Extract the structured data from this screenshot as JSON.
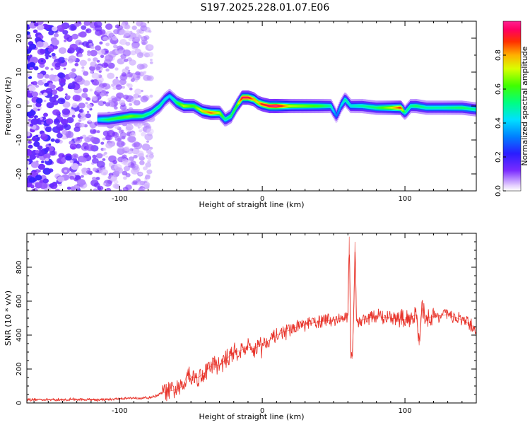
{
  "title": "S197.2025.228.01.07.E06",
  "chart_data": [
    {
      "type": "heatmap",
      "name": "spectrogram",
      "xlabel": "Height of straight line (km)",
      "ylabel": "Frequency (Hz)",
      "xlim": [
        -165,
        150
      ],
      "ylim": [
        -25,
        25
      ],
      "xticks": [
        -100,
        0,
        100
      ],
      "xtick_labels": [
        "-100",
        "0",
        "100"
      ],
      "yticks": [
        -20,
        -10,
        0,
        10,
        20
      ],
      "ytick_labels": [
        "-20",
        "-10",
        "0",
        "10",
        "20"
      ],
      "noise_region_x": [
        -165,
        -82
      ],
      "ridge": {
        "x": [
          -115,
          -108,
          -100,
          -92,
          -84,
          -78,
          -72,
          -68,
          -65,
          -60,
          -55,
          -48,
          -42,
          -36,
          -30,
          -26,
          -22,
          -18,
          -14,
          -10,
          -6,
          -3,
          0,
          5,
          10,
          20,
          30,
          40,
          48,
          52,
          55,
          58,
          62,
          70,
          80,
          90,
          97,
          100,
          104,
          108,
          115,
          125,
          140,
          150
        ],
        "y": [
          -4,
          -4,
          -3.5,
          -3,
          -3,
          -2,
          0,
          2,
          3,
          1,
          0,
          0,
          -1.5,
          -2,
          -2,
          -4,
          -3,
          0,
          2.5,
          2.5,
          2,
          1,
          0.5,
          0,
          0,
          0,
          0,
          0,
          0,
          -3,
          0,
          2,
          0,
          0,
          -0.5,
          -0.5,
          -0.5,
          -2,
          0,
          0,
          -0.5,
          -0.5,
          -0.5,
          -1
        ],
        "amp": [
          0.45,
          0.55,
          0.6,
          0.65,
          0.55,
          0.5,
          0.5,
          0.45,
          0.4,
          0.55,
          0.7,
          0.6,
          0.75,
          0.85,
          0.7,
          0.5,
          0.55,
          0.6,
          0.95,
          0.95,
          0.8,
          0.75,
          0.9,
          0.95,
          1.0,
          0.7,
          0.65,
          0.6,
          0.5,
          0.3,
          0.4,
          0.5,
          0.45,
          0.5,
          0.55,
          0.7,
          0.9,
          0.5,
          0.5,
          0.55,
          0.5,
          0.5,
          0.55,
          0.5
        ]
      },
      "colorbar": {
        "label": "Normalized spectral amplitude",
        "range": [
          0,
          1
        ],
        "ticks": [
          0.0,
          0.2,
          0.4,
          0.6,
          0.8
        ],
        "tick_labels": [
          "0.0",
          "0.2",
          "0.4",
          "0.6",
          "0.8"
        ]
      }
    },
    {
      "type": "line",
      "name": "snr",
      "xlabel": "Height of straight line (km)",
      "ylabel": "SNR (10 * v/v)",
      "xlim": [
        -165,
        150
      ],
      "ylim": [
        0,
        1000
      ],
      "xticks": [
        -100,
        0,
        100
      ],
      "xtick_labels": [
        "-100",
        "0",
        "100"
      ],
      "yticks": [
        0,
        200,
        400,
        600,
        800
      ],
      "ytick_labels": [
        "0",
        "200",
        "400",
        "600",
        "800"
      ],
      "color": "#e8332a",
      "series": [
        {
          "name": "SNR",
          "x": [
            -165,
            -150,
            -140,
            -130,
            -120,
            -110,
            -100,
            -90,
            -80,
            -75,
            -70,
            -65,
            -60,
            -55,
            -52,
            -50,
            -45,
            -40,
            -35,
            -30,
            -25,
            -20,
            -15,
            -10,
            -5,
            0,
            5,
            10,
            15,
            20,
            25,
            30,
            40,
            50,
            55,
            58,
            60,
            61,
            62,
            63,
            64,
            65,
            66,
            67,
            68,
            70,
            80,
            90,
            100,
            105,
            108,
            110,
            112,
            115,
            120,
            130,
            140,
            150
          ],
          "y": [
            20,
            20,
            18,
            20,
            20,
            20,
            25,
            30,
            30,
            40,
            60,
            70,
            80,
            100,
            200,
            150,
            150,
            180,
            230,
            220,
            260,
            300,
            310,
            330,
            320,
            350,
            370,
            400,
            420,
            430,
            450,
            460,
            480,
            490,
            500,
            490,
            520,
            980,
            300,
            260,
            500,
            950,
            500,
            480,
            470,
            490,
            510,
            500,
            490,
            510,
            520,
            340,
            560,
            500,
            510,
            520,
            490,
            440
          ]
        }
      ]
    }
  ]
}
